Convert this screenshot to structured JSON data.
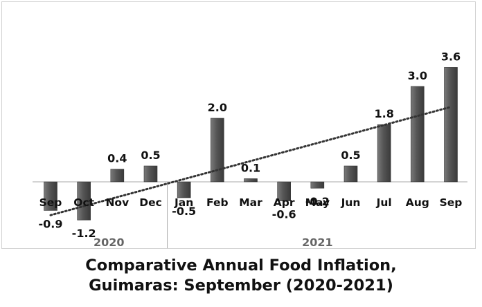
{
  "chart_data": {
    "type": "bar",
    "title": "Comparative Annual Food Inflation,",
    "subtitle": "Guimaras: September (2020-2021)",
    "categories": [
      "Sep",
      "Oct",
      "Nov",
      "Dec",
      "Jan",
      "Feb",
      "Mar",
      "Apr",
      "May",
      "Jun",
      "Jul",
      "Aug",
      "Sep"
    ],
    "values": [
      -0.9,
      -1.2,
      0.4,
      0.5,
      -0.5,
      2.0,
      0.1,
      -0.6,
      -0.2,
      0.5,
      1.8,
      3.0,
      3.6
    ],
    "value_labels": [
      "-0.9",
      "-1.2",
      "0.4",
      "0.5",
      "-0.5",
      "2.0",
      "0.1",
      "-0.6",
      "-0.2",
      "0.5",
      "1.8",
      "3.0",
      "3.6"
    ],
    "year_groups": [
      {
        "label": "2020",
        "start": 0,
        "end": 3
      },
      {
        "label": "2021",
        "start": 4,
        "end": 12
      }
    ],
    "trendline": {
      "style": "dotted",
      "type": "linear"
    },
    "ylim": [
      -1.5,
      4.0
    ],
    "xlabel": "",
    "ylabel": "",
    "grid": false,
    "legend": "none",
    "colors": {
      "bar": "#555555",
      "trend": "#333333",
      "text": "#111111",
      "year_text": "#666666",
      "axis": "#aaaaaa"
    }
  }
}
